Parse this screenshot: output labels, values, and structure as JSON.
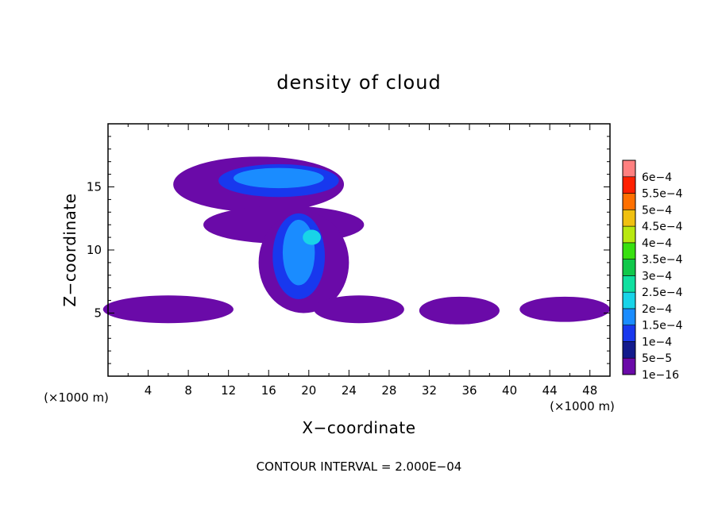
{
  "chart_data": {
    "type": "heatmap",
    "title": "density of cloud",
    "xlabel": "X−coordinate",
    "ylabel": "Z−coordinate",
    "x_unit": "(×1000 m)",
    "y_unit": "(×1000 m)",
    "xlim": [
      0,
      50
    ],
    "ylim": [
      0,
      20
    ],
    "x_ticks": [
      4,
      8,
      12,
      16,
      20,
      24,
      28,
      32,
      36,
      40,
      44,
      48
    ],
    "y_ticks": [
      5,
      10,
      15
    ],
    "footnote": "CONTOUR INTERVAL = 2.000E−04",
    "colorbar": {
      "labels": [
        "1e−16",
        "5e−5",
        "1e−4",
        "1.5e−4",
        "2e−4",
        "2.5e−4",
        "3e−4",
        "3.5e−4",
        "4e−4",
        "4.5e−4",
        "5e−4",
        "5.5e−4",
        "6e−4"
      ],
      "colors": [
        "#6a0aa8",
        "#121a8c",
        "#1838ee",
        "#1a8cff",
        "#18d4e8",
        "#10e0a0",
        "#10c84a",
        "#38e010",
        "#b8e810",
        "#f0c010",
        "#ff7000",
        "#ff2000",
        "#ff8080"
      ]
    },
    "regions": [
      {
        "level": 0,
        "desc": "anvil",
        "cx": 15.0,
        "cz": 15.2,
        "rx": 8.5,
        "rz": 2.2
      },
      {
        "level": 0,
        "desc": "mid band",
        "cx": 17.5,
        "cz": 12.0,
        "rx": 8.0,
        "rz": 1.5
      },
      {
        "level": 0,
        "desc": "column",
        "cx": 19.5,
        "cz": 9.0,
        "rx": 4.5,
        "rz": 4.0
      },
      {
        "level": 0,
        "desc": "low layer left",
        "cx": 6.0,
        "cz": 5.3,
        "rx": 6.5,
        "rz": 1.1
      },
      {
        "level": 0,
        "desc": "low layer center",
        "cx": 25.0,
        "cz": 5.3,
        "rx": 4.5,
        "rz": 1.1
      },
      {
        "level": 0,
        "desc": "low layer right-center",
        "cx": 35.0,
        "cz": 5.2,
        "rx": 4.0,
        "rz": 1.1
      },
      {
        "level": 0,
        "desc": "low layer right",
        "cx": 45.5,
        "cz": 5.3,
        "rx": 4.5,
        "rz": 1.0
      },
      {
        "level": 2,
        "desc": "anvil core",
        "cx": 17.0,
        "cz": 15.5,
        "rx": 6.0,
        "rz": 1.3
      },
      {
        "level": 3,
        "desc": "anvil inner",
        "cx": 17.0,
        "cz": 15.7,
        "rx": 4.5,
        "rz": 0.8
      },
      {
        "level": 2,
        "desc": "column core",
        "cx": 19.0,
        "cz": 9.5,
        "rx": 2.6,
        "rz": 3.4
      },
      {
        "level": 3,
        "desc": "column inner",
        "cx": 19.0,
        "cz": 9.8,
        "rx": 1.6,
        "rz": 2.6
      },
      {
        "level": 4,
        "desc": "maximum",
        "cx": 20.3,
        "cz": 11.0,
        "rx": 0.9,
        "rz": 0.6
      }
    ]
  }
}
